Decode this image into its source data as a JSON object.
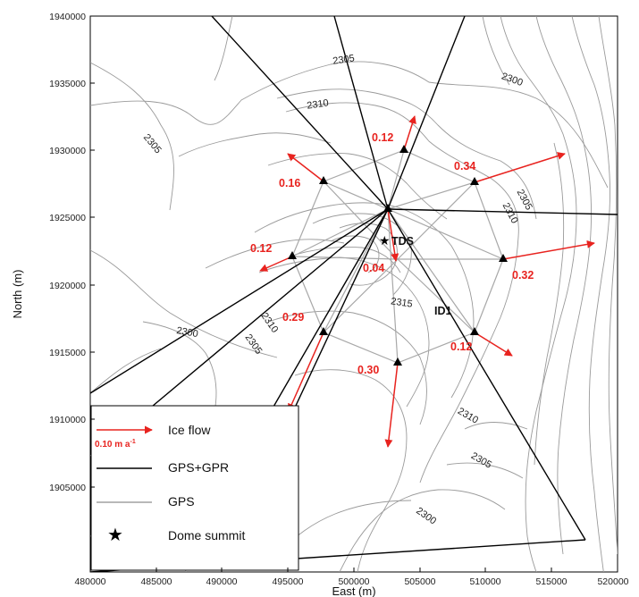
{
  "axes": {
    "x_label": "East (m)",
    "y_label": "North (m)",
    "x_ticks": [
      "480000",
      "485000",
      "490000",
      "495000",
      "500000",
      "505000",
      "510000",
      "515000",
      "520000"
    ],
    "y_ticks": [
      "1940000",
      "1935000",
      "1930000",
      "1925000",
      "1920000",
      "1915000",
      "1910000",
      "1905000"
    ]
  },
  "contour_labels": [
    "2305",
    "2300",
    "2310",
    "2305",
    "2305",
    "2310",
    "2315",
    "2310",
    "2300",
    "2305",
    "2310",
    "2305",
    "2300"
  ],
  "sites": {
    "summit": "TDS",
    "id1": "ID1"
  },
  "velocities": [
    "0.12",
    "0.16",
    "0.34",
    "0.12",
    "0.04",
    "0.32",
    "0.29",
    "0.30",
    "0.12"
  ],
  "legend": {
    "ice_flow": "Ice flow",
    "scale": "0.10 m a",
    "scale_exp": "-1",
    "gps_gpr": "GPS+GPR",
    "gps": "GPS",
    "summit": "Dome summit"
  },
  "colors": {
    "arrow": "#e8231f",
    "gps_gpr_line": "#000000",
    "gps_line": "#a0a0a0",
    "contour": "#9a9a9a"
  }
}
